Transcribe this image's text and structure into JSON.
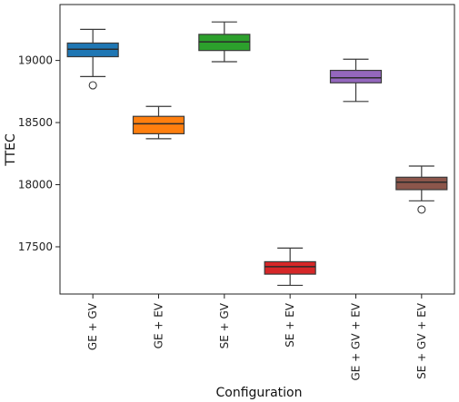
{
  "chart_data": {
    "type": "box",
    "title": "",
    "xlabel": "Configuration",
    "ylabel": "TTEC",
    "ylim": [
      17120,
      19450
    ],
    "yticks": [
      17500,
      18000,
      18500,
      19000
    ],
    "grid": false,
    "categories": [
      "GE + GV",
      "GE + EV",
      "SE + GV",
      "SE + EV",
      "GE + GV + EV",
      "SE + GV + EV"
    ],
    "boxes": [
      {
        "category": "GE + GV",
        "color": "#1f77b4",
        "whisker_low": 18870,
        "q1": 19030,
        "median": 19090,
        "q3": 19140,
        "whisker_high": 19250,
        "outliers": [
          18800
        ]
      },
      {
        "category": "GE + EV",
        "color": "#ff7f0e",
        "whisker_low": 18370,
        "q1": 18410,
        "median": 18490,
        "q3": 18550,
        "whisker_high": 18630,
        "outliers": []
      },
      {
        "category": "SE + GV",
        "color": "#2ca02c",
        "whisker_low": 18990,
        "q1": 19080,
        "median": 19150,
        "q3": 19210,
        "whisker_high": 19310,
        "outliers": []
      },
      {
        "category": "SE + EV",
        "color": "#d62728",
        "whisker_low": 17190,
        "q1": 17280,
        "median": 17340,
        "q3": 17380,
        "whisker_high": 17490,
        "outliers": []
      },
      {
        "category": "GE + GV + EV",
        "color": "#9467bd",
        "whisker_low": 18670,
        "q1": 18820,
        "median": 18860,
        "q3": 18920,
        "whisker_high": 19010,
        "outliers": []
      },
      {
        "category": "SE + GV + EV",
        "color": "#8c564b",
        "whisker_low": 17870,
        "q1": 17960,
        "median": 18020,
        "q3": 18060,
        "whisker_high": 18150,
        "outliers": [
          17800
        ]
      }
    ]
  }
}
